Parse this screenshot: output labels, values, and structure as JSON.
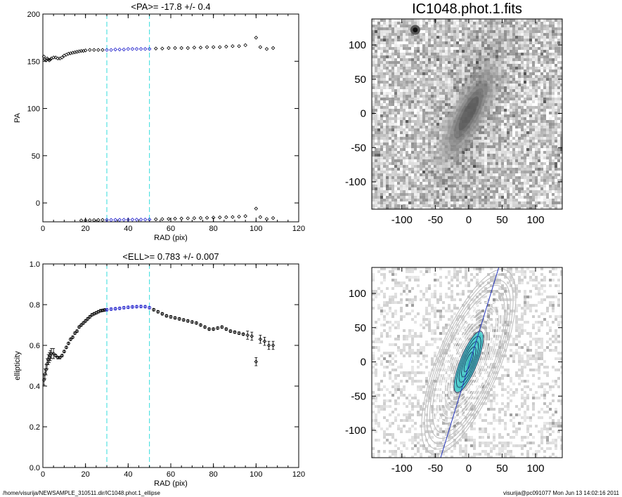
{
  "footer": {
    "path": "/home/visurija/NEWSAMPLE_310511.dir/IC1048.phot.1_ellipse",
    "user_time": "visurija@pc091077  Mon Jun 13 14:02:16 2011"
  },
  "chart_data": [
    {
      "type": "scatter",
      "title": "<PA>= -17.8 +/-   0.4",
      "xlabel": "RAD (pix)",
      "ylabel": "PA",
      "xlim": [
        0,
        120
      ],
      "ylim": [
        -20,
        200
      ],
      "xticks": [
        "0",
        "20",
        "40",
        "60",
        "80",
        "100",
        "120"
      ],
      "yticks": [
        "0",
        "50",
        "100",
        "150",
        "200"
      ],
      "vlines": [
        30,
        50
      ],
      "series": [
        {
          "x": [
            0.5,
            1,
            1.5,
            2,
            2.5,
            3,
            3.5,
            4,
            5,
            6,
            7,
            8,
            9,
            10,
            11,
            12,
            13,
            14,
            15,
            16,
            17,
            18,
            19,
            20,
            22,
            24,
            26,
            28,
            30,
            32,
            34,
            36,
            38,
            40,
            42,
            44,
            46,
            48,
            50,
            53,
            56,
            59,
            62,
            65,
            68,
            71,
            74,
            77,
            80,
            83,
            86,
            89,
            92,
            95,
            100,
            102,
            105,
            108
          ],
          "y": [
            155,
            152,
            151,
            153,
            152,
            151,
            152,
            153,
            154,
            154,
            153,
            153,
            154,
            156,
            157,
            158,
            158.5,
            159,
            159.5,
            160,
            160.5,
            161,
            161,
            161.5,
            162,
            162,
            162,
            162,
            162,
            162,
            162.5,
            162.5,
            162.5,
            163,
            163,
            163,
            163,
            163,
            163,
            163.5,
            163.5,
            164,
            164,
            164,
            164,
            164.5,
            164.5,
            165,
            165,
            165,
            165.5,
            166,
            166,
            167,
            175,
            165,
            163,
            164
          ]
        },
        {
          "x": [
            18,
            20,
            22,
            24,
            26,
            28,
            30,
            32,
            34,
            36,
            38,
            40,
            42,
            44,
            46,
            48,
            50,
            53,
            56,
            59,
            62,
            65,
            68,
            71,
            74,
            77,
            80,
            83,
            86,
            89,
            92,
            95,
            100,
            102,
            105,
            108
          ],
          "y": [
            -18.5,
            -18.4,
            -18.3,
            -18.2,
            -18.1,
            -18,
            -18,
            -18,
            -17.9,
            -17.9,
            -17.8,
            -17.8,
            -17.7,
            -17.7,
            -17.6,
            -17.6,
            -17.5,
            -17.3,
            -17.1,
            -16.9,
            -16.7,
            -16.5,
            -16.3,
            -16.1,
            -15.9,
            -15.7,
            -15.5,
            -15.3,
            -15.1,
            -14.9,
            -14.5,
            -14,
            -6,
            -15,
            -17,
            -16
          ]
        }
      ]
    },
    {
      "type": "image",
      "title": "IC1048.phot.1.fits",
      "xlim": [
        -145,
        140
      ],
      "ylim": [
        -140,
        138
      ],
      "xticks": [
        "-100",
        "-50",
        "0",
        "50",
        "100"
      ],
      "yticks": [
        "100",
        "50",
        "0",
        "-50",
        "-100"
      ]
    },
    {
      "type": "scatter",
      "title": "<ELL>= 0.783 +/-  0.007",
      "xlabel": "RAD (pix)",
      "ylabel": "ellipticity",
      "xlim": [
        0,
        120
      ],
      "ylim": [
        0,
        1
      ],
      "xticks": [
        "0",
        "20",
        "40",
        "60",
        "80",
        "100",
        "120"
      ],
      "yticks": [
        "0.0",
        "0.2",
        "0.4",
        "0.6",
        "0.8",
        "1.0"
      ],
      "vlines": [
        30,
        50
      ],
      "series": [
        {
          "x": [
            0.5,
            1,
            1.5,
            2,
            2.5,
            3,
            3.5,
            4,
            5,
            6,
            7,
            8,
            9,
            10,
            11,
            12,
            13,
            14,
            15,
            16,
            17,
            18,
            19,
            20,
            21,
            22,
            23,
            24,
            25,
            26,
            27,
            28,
            29,
            30,
            32,
            34,
            36,
            38,
            40,
            42,
            44,
            46,
            48,
            50,
            52,
            54,
            56,
            58,
            60,
            62,
            64,
            66,
            68,
            70,
            72,
            74,
            76,
            78,
            80,
            82,
            84,
            86,
            88,
            90,
            92,
            94,
            96,
            98,
            100,
            102,
            104,
            106,
            108
          ],
          "y": [
            0.43,
            0.46,
            0.48,
            0.51,
            0.53,
            0.54,
            0.55,
            0.56,
            0.56,
            0.55,
            0.54,
            0.54,
            0.55,
            0.57,
            0.59,
            0.61,
            0.63,
            0.64,
            0.66,
            0.67,
            0.69,
            0.7,
            0.71,
            0.72,
            0.73,
            0.74,
            0.75,
            0.755,
            0.76,
            0.765,
            0.77,
            0.772,
            0.774,
            0.775,
            0.778,
            0.78,
            0.782,
            0.785,
            0.787,
            0.789,
            0.79,
            0.791,
            0.79,
            0.785,
            0.775,
            0.765,
            0.755,
            0.745,
            0.74,
            0.735,
            0.73,
            0.725,
            0.72,
            0.715,
            0.71,
            0.7,
            0.69,
            0.68,
            0.68,
            0.685,
            0.69,
            0.68,
            0.67,
            0.665,
            0.66,
            0.655,
            0.65,
            0.645,
            0.52,
            0.63,
            0.62,
            0.6,
            0.6
          ]
        }
      ]
    },
    {
      "type": "image",
      "title": "",
      "xlim": [
        -145,
        140
      ],
      "ylim": [
        -140,
        138
      ],
      "xticks": [
        "-100",
        "-50",
        "0",
        "50",
        "100"
      ],
      "yticks": [
        "100",
        "50",
        "0",
        "-50",
        "-100"
      ]
    }
  ]
}
